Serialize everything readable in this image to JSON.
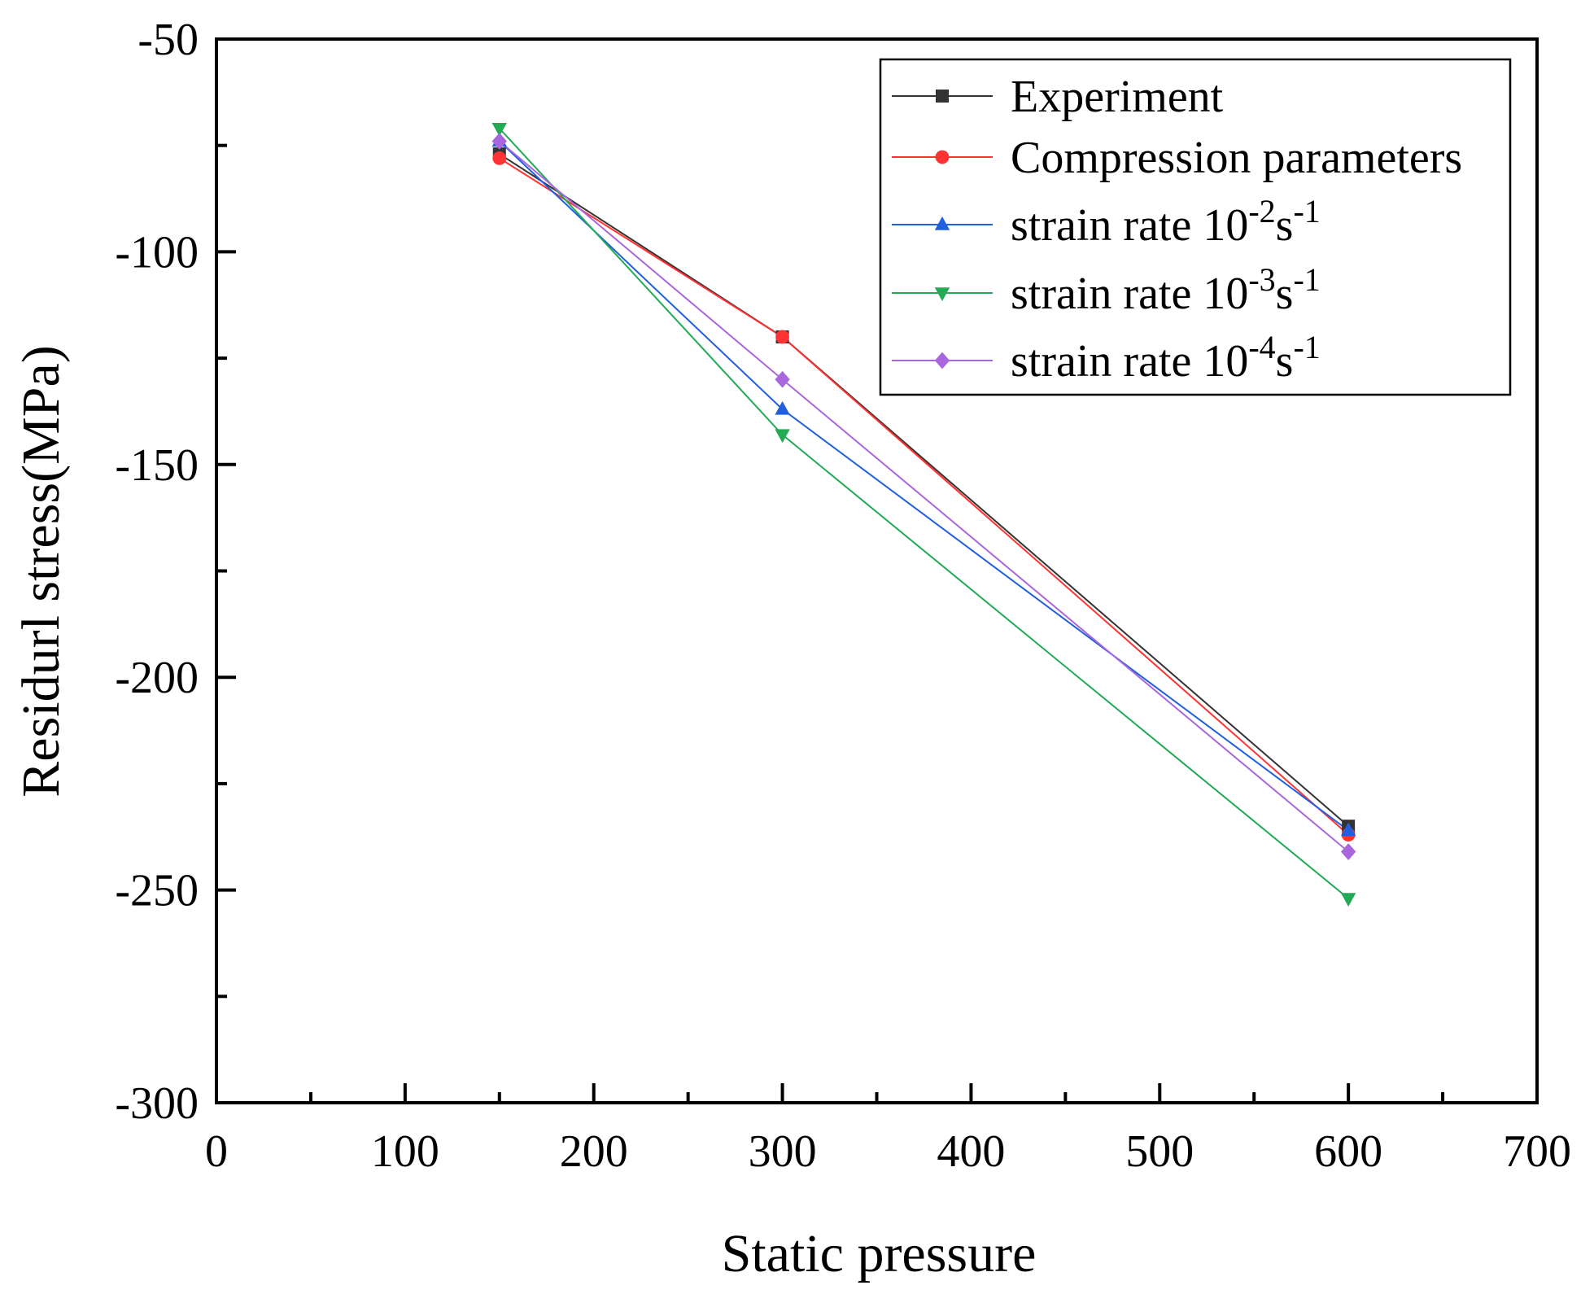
{
  "chart_data": {
    "type": "line",
    "title": "",
    "xlabel": "Static pressure",
    "ylabel": "Residurl stress(MPa)",
    "xlim": [
      0,
      700
    ],
    "ylim": [
      -300,
      -50
    ],
    "x_major_ticks": [
      0,
      100,
      200,
      300,
      400,
      500,
      600,
      700
    ],
    "x_tick_labels": [
      "0",
      "100",
      "200",
      "300",
      "400",
      "500",
      "600",
      "700"
    ],
    "y_major_ticks": [
      -300,
      -250,
      -200,
      -150,
      -100,
      -50
    ],
    "y_tick_labels": [
      "-300",
      "-250",
      "-200",
      "-150",
      "-100",
      "-50"
    ],
    "grid": false,
    "legend_position": "top-right",
    "x": [
      150,
      300,
      600
    ],
    "series": [
      {
        "name": "Experiment",
        "legend": {
          "prefix": "Experiment"
        },
        "values": [
          -77,
          -120,
          -235
        ],
        "color": "#333333",
        "marker": "square"
      },
      {
        "name": "Compression parameters",
        "legend": {
          "prefix": "Compression parameters"
        },
        "values": [
          -78,
          -120,
          -237
        ],
        "color": "#ff3333",
        "marker": "circle"
      },
      {
        "name": "strain rate 10-2s-1",
        "legend": {
          "prefix": "strain rate 10",
          "exp": "-2",
          "unit": "s",
          "unit_exp": "-1"
        },
        "values": [
          -74,
          -137,
          -236
        ],
        "color": "#1f5fe0",
        "marker": "triangle-up"
      },
      {
        "name": "strain rate 10-3s-1",
        "legend": {
          "prefix": "strain rate 10",
          "exp": "-3",
          "unit": "s",
          "unit_exp": "-1"
        },
        "values": [
          -71,
          -143,
          -252
        ],
        "color": "#22aa55",
        "marker": "triangle-down"
      },
      {
        "name": "strain rate 10-4s-1",
        "legend": {
          "prefix": "strain rate 10",
          "exp": "-4",
          "unit": "s",
          "unit_exp": "-1"
        },
        "values": [
          -74,
          -130,
          -241
        ],
        "color": "#aa66dd",
        "marker": "diamond"
      }
    ]
  }
}
